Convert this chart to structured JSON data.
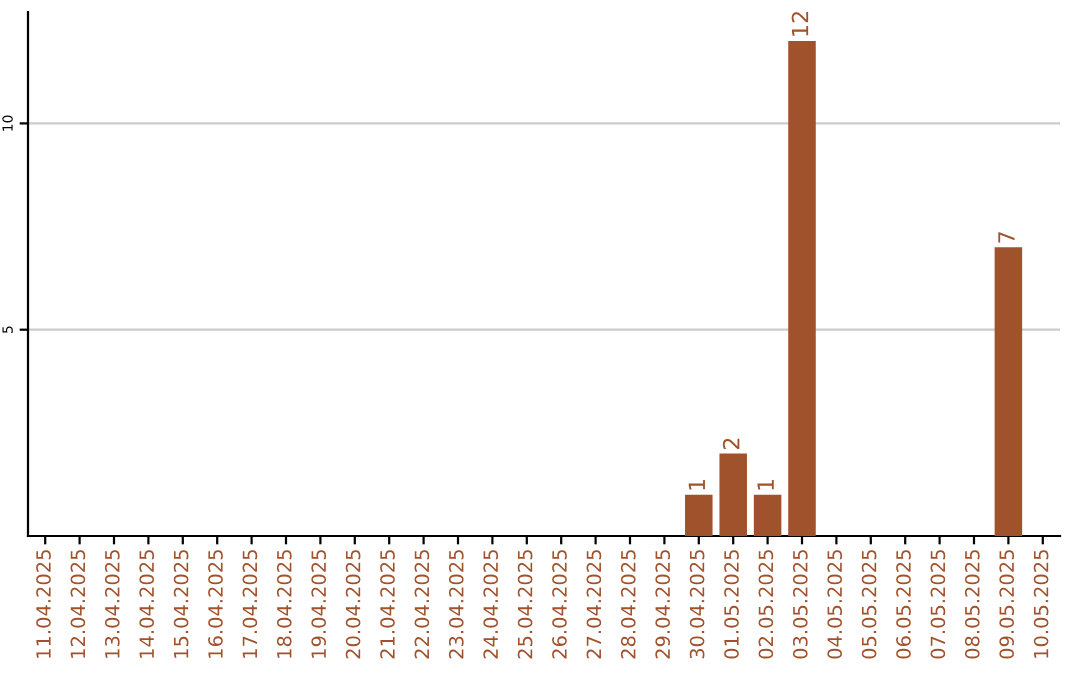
{
  "chart_data": {
    "type": "bar",
    "categories": [
      "11.04.2025",
      "12.04.2025",
      "13.04.2025",
      "14.04.2025",
      "15.04.2025",
      "16.04.2025",
      "17.04.2025",
      "18.04.2025",
      "19.04.2025",
      "20.04.2025",
      "21.04.2025",
      "22.04.2025",
      "23.04.2025",
      "24.04.2025",
      "25.04.2025",
      "26.04.2025",
      "27.04.2025",
      "28.04.2025",
      "29.04.2025",
      "30.04.2025",
      "01.05.2025",
      "02.05.2025",
      "03.05.2025",
      "04.05.2025",
      "05.05.2025",
      "06.05.2025",
      "07.05.2025",
      "08.05.2025",
      "09.05.2025",
      "10.05.2025"
    ],
    "values": [
      0,
      0,
      0,
      0,
      0,
      0,
      0,
      0,
      0,
      0,
      0,
      0,
      0,
      0,
      0,
      0,
      0,
      0,
      0,
      1,
      2,
      1,
      12,
      0,
      0,
      0,
      0,
      0,
      7,
      0
    ],
    "value_labels": [
      null,
      null,
      null,
      null,
      null,
      null,
      null,
      null,
      null,
      null,
      null,
      null,
      null,
      null,
      null,
      null,
      null,
      null,
      null,
      "1",
      "2",
      "1",
      "12",
      null,
      null,
      null,
      null,
      null,
      "7",
      null
    ],
    "color": "#a0522d",
    "ylim": [
      0,
      12.7
    ],
    "yticks": [
      5,
      10
    ],
    "grid": "y"
  }
}
